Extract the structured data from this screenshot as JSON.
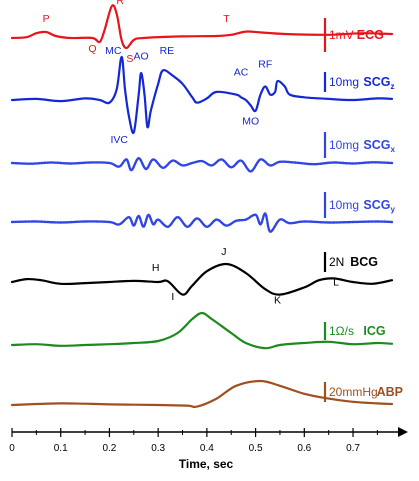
{
  "chart_data": {
    "type": "line",
    "xlabel": "Time, sec",
    "xlim": [
      0,
      0.78
    ],
    "x_ticks": [
      "0",
      "0.1",
      "0.2",
      "0.3",
      "0.4",
      "0.5",
      "0.6",
      "0.7"
    ],
    "x_tick_values": [
      0,
      0.1,
      0.2,
      0.3,
      0.4,
      0.5,
      0.6,
      0.7
    ],
    "grid": false,
    "series": [
      {
        "key": "ecg",
        "name": "ECG",
        "name_sub": "",
        "scale": "1mV",
        "color": "#e8141b",
        "dash": "",
        "points": [
          [
            0,
            0
          ],
          [
            0.03,
            0.02
          ],
          [
            0.05,
            0.12
          ],
          [
            0.07,
            0.15
          ],
          [
            0.09,
            0.05
          ],
          [
            0.12,
            0
          ],
          [
            0.165,
            0
          ],
          [
            0.18,
            -0.1
          ],
          [
            0.19,
            0.2
          ],
          [
            0.205,
            0.8
          ],
          [
            0.215,
            0.6
          ],
          [
            0.225,
            -0.05
          ],
          [
            0.235,
            -0.25
          ],
          [
            0.25,
            -0.05
          ],
          [
            0.27,
            0
          ],
          [
            0.35,
            0.04
          ],
          [
            0.42,
            0.05
          ],
          [
            0.45,
            0.08
          ],
          [
            0.48,
            0.16
          ],
          [
            0.51,
            0.14
          ],
          [
            0.56,
            0.1
          ],
          [
            0.65,
            0.08
          ],
          [
            0.72,
            0.12
          ],
          [
            0.78,
            0.1
          ]
        ],
        "labels": [
          {
            "text": "P",
            "t": 0.07,
            "v": 0.4
          },
          {
            "text": "Q",
            "t": 0.165,
            "v": -0.35
          },
          {
            "text": "R",
            "t": 0.222,
            "v": 0.85
          },
          {
            "text": "S",
            "t": 0.242,
            "v": -0.6
          },
          {
            "text": "T",
            "t": 0.44,
            "v": 0.4
          }
        ]
      },
      {
        "key": "scgz",
        "name": "SCG",
        "name_sub": "z",
        "scale": "10mg",
        "color": "#1428d4",
        "dash": "",
        "points": [
          [
            0,
            0
          ],
          [
            0.05,
            0.02
          ],
          [
            0.1,
            -0.02
          ],
          [
            0.15,
            0.03
          ],
          [
            0.18,
            0
          ],
          [
            0.2,
            -0.05
          ],
          [
            0.215,
            0.2
          ],
          [
            0.225,
            0.8
          ],
          [
            0.232,
            0.2
          ],
          [
            0.24,
            -0.3
          ],
          [
            0.25,
            -0.6
          ],
          [
            0.26,
            0.1
          ],
          [
            0.265,
            0.5
          ],
          [
            0.272,
            0.1
          ],
          [
            0.278,
            -0.5
          ],
          [
            0.285,
            -0.2
          ],
          [
            0.3,
            0.3
          ],
          [
            0.31,
            0.55
          ],
          [
            0.33,
            0.45
          ],
          [
            0.35,
            0.3
          ],
          [
            0.37,
            0.05
          ],
          [
            0.38,
            -0.05
          ],
          [
            0.4,
            0.03
          ],
          [
            0.42,
            0.15
          ],
          [
            0.46,
            0.1
          ],
          [
            0.47,
            0.05
          ],
          [
            0.48,
            0
          ],
          [
            0.49,
            -0.1
          ],
          [
            0.5,
            -0.2
          ],
          [
            0.51,
            0.1
          ],
          [
            0.52,
            0.25
          ],
          [
            0.53,
            0.1
          ],
          [
            0.54,
            0.15
          ],
          [
            0.545,
            0.35
          ],
          [
            0.56,
            0.25
          ],
          [
            0.57,
            0.1
          ],
          [
            0.6,
            0.05
          ],
          [
            0.65,
            0.02
          ],
          [
            0.7,
            0
          ],
          [
            0.75,
            0.03
          ],
          [
            0.78,
            0.02
          ]
        ],
        "labels": [
          {
            "text": "MC",
            "t": 0.208,
            "v": 0.85
          },
          {
            "text": "AO",
            "t": 0.265,
            "v": 0.75
          },
          {
            "text": "RE",
            "t": 0.318,
            "v": 0.85
          },
          {
            "text": "IVC",
            "t": 0.22,
            "v": -0.8
          },
          {
            "text": "AC",
            "t": 0.47,
            "v": 0.45
          },
          {
            "text": "RF",
            "t": 0.52,
            "v": 0.6
          },
          {
            "text": "MO",
            "t": 0.49,
            "v": -0.45
          }
        ]
      },
      {
        "key": "scgx",
        "name": "SCG",
        "name_sub": "x",
        "scale": "10mg",
        "color": "#3046e4",
        "dash": "2,1.2",
        "points": [
          [
            0,
            0
          ],
          [
            0.04,
            -0.03
          ],
          [
            0.08,
            0.02
          ],
          [
            0.12,
            -0.02
          ],
          [
            0.16,
            0.02
          ],
          [
            0.2,
            0
          ],
          [
            0.22,
            -0.15
          ],
          [
            0.235,
            0.15
          ],
          [
            0.245,
            -0.3
          ],
          [
            0.26,
            0.2
          ],
          [
            0.275,
            -0.25
          ],
          [
            0.29,
            0.15
          ],
          [
            0.31,
            -0.2
          ],
          [
            0.33,
            0.1
          ],
          [
            0.35,
            -0.1
          ],
          [
            0.37,
            0
          ],
          [
            0.39,
            0.08
          ],
          [
            0.41,
            -0.1
          ],
          [
            0.43,
            0.15
          ],
          [
            0.45,
            -0.18
          ],
          [
            0.47,
            0.1
          ],
          [
            0.49,
            -0.35
          ],
          [
            0.51,
            0.15
          ],
          [
            0.53,
            -0.1
          ],
          [
            0.55,
            0.05
          ],
          [
            0.58,
            0.02
          ],
          [
            0.62,
            -0.05
          ],
          [
            0.66,
            0.02
          ],
          [
            0.7,
            -0.02
          ],
          [
            0.74,
            0.03
          ],
          [
            0.78,
            0
          ]
        ],
        "labels": []
      },
      {
        "key": "scgy",
        "name": "SCG",
        "name_sub": "y",
        "scale": "10mg",
        "color": "#3046e4",
        "dash": "2,1.2",
        "points": [
          [
            0,
            0
          ],
          [
            0.05,
            0.02
          ],
          [
            0.1,
            -0.02
          ],
          [
            0.15,
            0.02
          ],
          [
            0.2,
            0
          ],
          [
            0.22,
            -0.1
          ],
          [
            0.24,
            0.2
          ],
          [
            0.25,
            -0.15
          ],
          [
            0.26,
            0.25
          ],
          [
            0.27,
            -0.2
          ],
          [
            0.28,
            0.3
          ],
          [
            0.29,
            -0.1
          ],
          [
            0.3,
            0.1
          ],
          [
            0.32,
            -0.2
          ],
          [
            0.34,
            0.2
          ],
          [
            0.36,
            -0.2
          ],
          [
            0.38,
            0.15
          ],
          [
            0.4,
            -0.2
          ],
          [
            0.42,
            0.1
          ],
          [
            0.44,
            -0.15
          ],
          [
            0.46,
            0.05
          ],
          [
            0.48,
            0.1
          ],
          [
            0.5,
            0.3
          ],
          [
            0.51,
            -0.1
          ],
          [
            0.52,
            0.35
          ],
          [
            0.53,
            -0.4
          ],
          [
            0.55,
            0.1
          ],
          [
            0.57,
            -0.05
          ],
          [
            0.6,
            0.02
          ],
          [
            0.65,
            -0.02
          ],
          [
            0.7,
            0
          ],
          [
            0.75,
            0.02
          ],
          [
            0.78,
            0
          ]
        ],
        "labels": []
      },
      {
        "key": "bcg",
        "name": "BCG",
        "name_sub": "",
        "scale": "2N",
        "color": "#000000",
        "dash": "",
        "points": [
          [
            0,
            0
          ],
          [
            0.03,
            0.08
          ],
          [
            0.06,
            0.05
          ],
          [
            0.1,
            -0.05
          ],
          [
            0.15,
            -0.03
          ],
          [
            0.2,
            0
          ],
          [
            0.25,
            0.03
          ],
          [
            0.3,
            0
          ],
          [
            0.32,
            0.02
          ],
          [
            0.35,
            -0.35
          ],
          [
            0.37,
            -0.1
          ],
          [
            0.4,
            0.3
          ],
          [
            0.44,
            0.5
          ],
          [
            0.48,
            0.25
          ],
          [
            0.52,
            -0.2
          ],
          [
            0.55,
            -0.35
          ],
          [
            0.6,
            -0.15
          ],
          [
            0.63,
            0.05
          ],
          [
            0.66,
            0.1
          ],
          [
            0.7,
            0
          ],
          [
            0.74,
            -0.05
          ],
          [
            0.78,
            0.05
          ]
        ],
        "labels": [
          {
            "text": "H",
            "t": 0.295,
            "v": 0.3
          },
          {
            "text": "I",
            "t": 0.33,
            "v": -0.5
          },
          {
            "text": "J",
            "t": 0.435,
            "v": 0.75
          },
          {
            "text": "K",
            "t": 0.545,
            "v": -0.6
          },
          {
            "text": "L",
            "t": 0.665,
            "v": -0.1
          }
        ]
      },
      {
        "key": "icg",
        "name": "ICG",
        "name_sub": "",
        "scale": "1Ω/s",
        "color": "#1d8a1f",
        "dash": "",
        "points": [
          [
            0,
            0
          ],
          [
            0.05,
            0.02
          ],
          [
            0.1,
            -0.02
          ],
          [
            0.15,
            0
          ],
          [
            0.2,
            0.02
          ],
          [
            0.25,
            0.05
          ],
          [
            0.3,
            0.1
          ],
          [
            0.34,
            0.3
          ],
          [
            0.37,
            0.65
          ],
          [
            0.39,
            0.8
          ],
          [
            0.41,
            0.65
          ],
          [
            0.45,
            0.3
          ],
          [
            0.48,
            0.05
          ],
          [
            0.52,
            -0.08
          ],
          [
            0.55,
            0
          ],
          [
            0.6,
            0.05
          ],
          [
            0.65,
            0.08
          ],
          [
            0.7,
            0.02
          ],
          [
            0.75,
            0.05
          ],
          [
            0.78,
            0.03
          ]
        ],
        "labels": []
      },
      {
        "key": "abp",
        "name": "ABP",
        "name_sub": "",
        "scale": "20mmHg",
        "color": "#a0501e",
        "dash": "",
        "points": [
          [
            0,
            0
          ],
          [
            0.05,
            0.03
          ],
          [
            0.1,
            0.05
          ],
          [
            0.15,
            0.04
          ],
          [
            0.2,
            0.02
          ],
          [
            0.3,
            0
          ],
          [
            0.36,
            -0.02
          ],
          [
            0.38,
            -0.05
          ],
          [
            0.42,
            0.2
          ],
          [
            0.46,
            0.6
          ],
          [
            0.51,
            0.75
          ],
          [
            0.55,
            0.6
          ],
          [
            0.6,
            0.35
          ],
          [
            0.65,
            0.2
          ],
          [
            0.7,
            0.1
          ],
          [
            0.75,
            0.05
          ],
          [
            0.78,
            0.03
          ]
        ],
        "labels": []
      }
    ]
  }
}
